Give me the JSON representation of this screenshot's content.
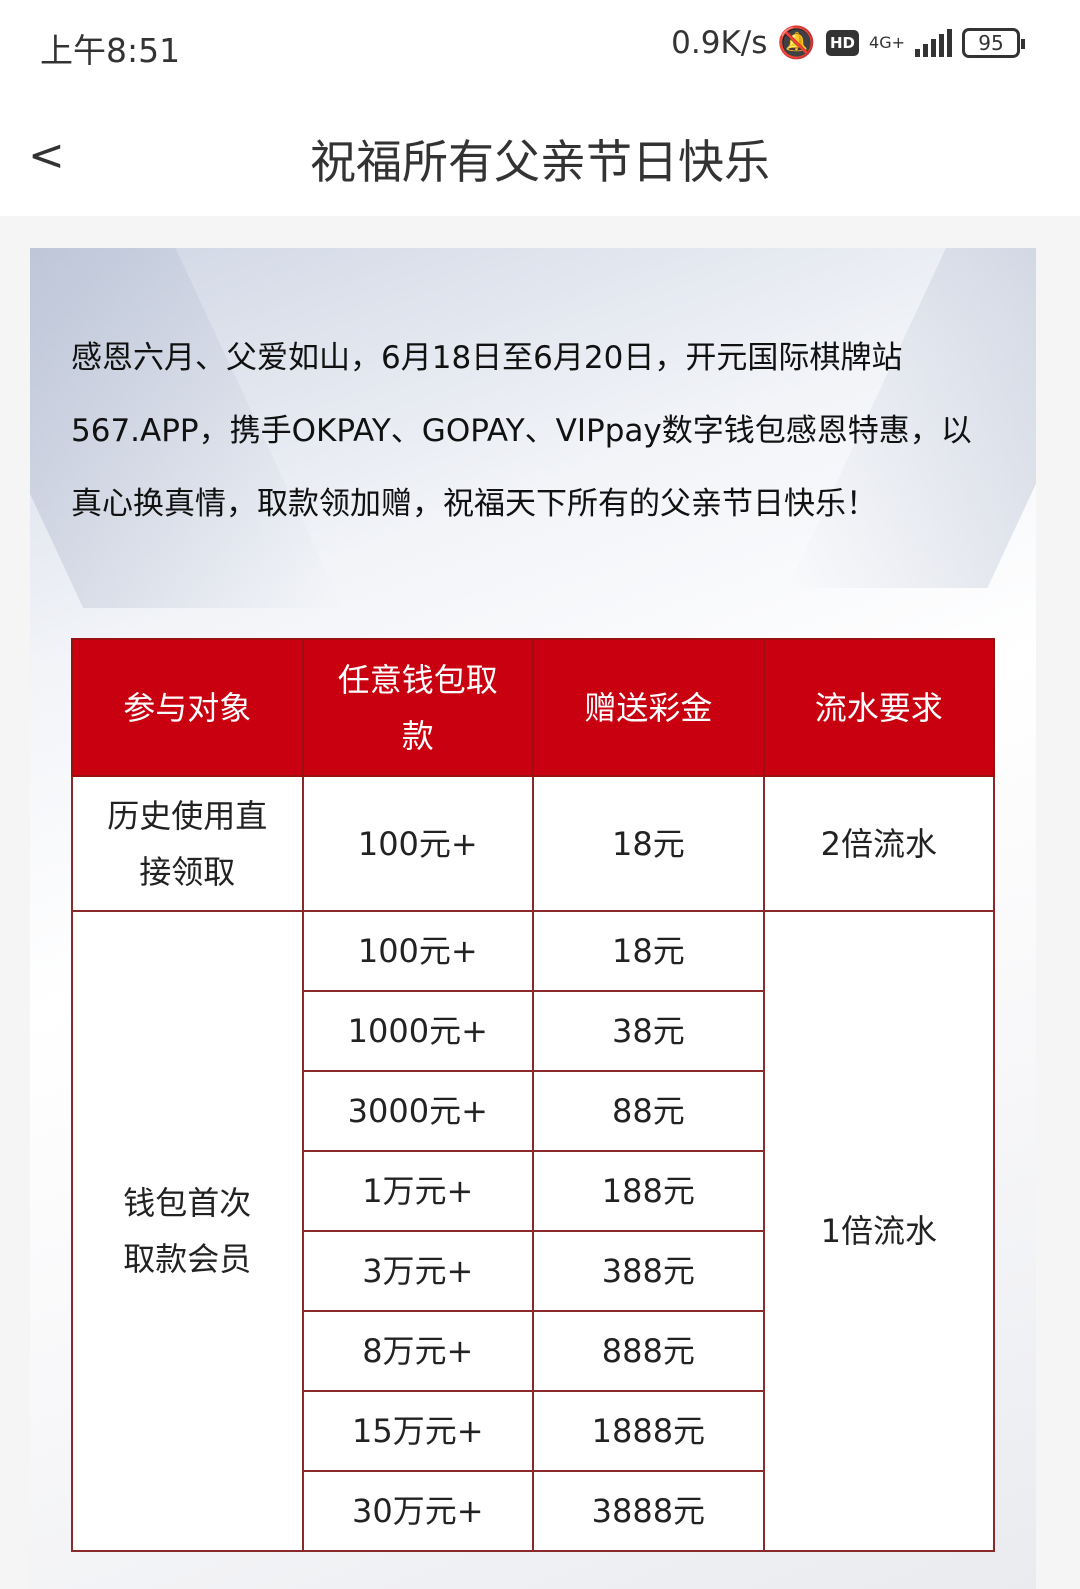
{
  "status_bar": {
    "time": "上午8:51",
    "speed": "0.9K/s",
    "hd": "HD",
    "network": "4G+",
    "battery": "95"
  },
  "header": {
    "title": "祝福所有父亲节日快乐",
    "back": "<"
  },
  "intro": "感恩六月、父爱如山，6月18日至6月20日，开元国际棋牌站567.APP，携手OKPAY、GOPAY、VIPpay数字钱包感恩特惠，以真心换真情，取款领加赠，祝福天下所有的父亲节日快乐！",
  "table": {
    "headers": [
      "参与对象",
      "任意钱包取款",
      "赠送彩金",
      "流水要求"
    ],
    "row1": {
      "target": "历史使用直接领取",
      "amount": "100元+",
      "bonus": "18元",
      "turnover": "2倍流水"
    },
    "group2": {
      "target": "钱包首次取款会员",
      "turnover": "1倍流水",
      "rows": [
        {
          "amount": "100元+",
          "bonus": "18元"
        },
        {
          "amount": "1000元+",
          "bonus": "38元"
        },
        {
          "amount": "3000元+",
          "bonus": "88元"
        },
        {
          "amount": "1万元+",
          "bonus": "188元"
        },
        {
          "amount": "3万元+",
          "bonus": "388元"
        },
        {
          "amount": "8万元+",
          "bonus": "888元"
        },
        {
          "amount": "15万元+",
          "bonus": "1888元"
        },
        {
          "amount": "30万元+",
          "bonus": "3888元"
        }
      ]
    }
  },
  "colors": {
    "header_red": "#c8000f"
  }
}
